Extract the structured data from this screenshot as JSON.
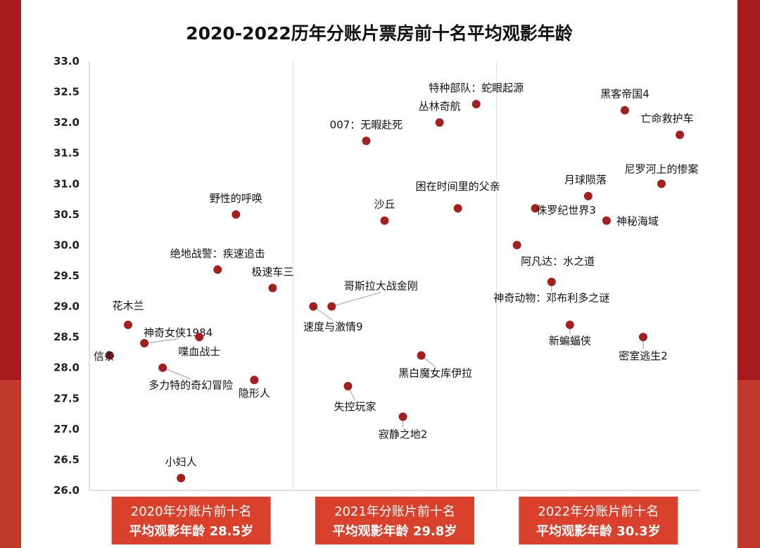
{
  "colors": {
    "point": "#a3201f",
    "footer": "#d9412c",
    "frame": "#b01f24"
  },
  "chart_data": {
    "type": "scatter",
    "title": "2020-2022历年分账片票房前十名平均观影年龄",
    "ylabel": "",
    "xlabel": "",
    "ylim": [
      26.0,
      33.0
    ],
    "yticks": [
      "26.0",
      "26.5",
      "27.0",
      "27.5",
      "28.0",
      "28.5",
      "29.0",
      "29.5",
      "30.0",
      "30.5",
      "31.0",
      "31.5",
      "32.0",
      "32.5",
      "33.0"
    ],
    "grid": false,
    "groups": [
      {
        "label_line1": "2020年分账片前十名",
        "label_line2": "平均观影年龄 28.5岁"
      },
      {
        "label_line1": "2021年分账片前十名",
        "label_line2": "平均观影年龄 29.8岁"
      },
      {
        "label_line1": "2022年分账片前十名",
        "label_line2": "平均观影年龄 30.3岁"
      }
    ],
    "points": [
      {
        "name": "信条",
        "group": 0,
        "x": 0.1,
        "y": 28.2
      },
      {
        "name": "花木兰",
        "group": 0,
        "x": 0.19,
        "y": 28.7
      },
      {
        "name": "神奇女侠1984",
        "group": 0,
        "x": 0.27,
        "y": 28.4
      },
      {
        "name": "多力特的奇幻冒险",
        "group": 0,
        "x": 0.36,
        "y": 28.0
      },
      {
        "name": "喋血战士",
        "group": 0,
        "x": 0.54,
        "y": 28.5
      },
      {
        "name": "小妇人",
        "group": 0,
        "x": 0.45,
        "y": 26.2
      },
      {
        "name": "绝地战警：疾速追击",
        "group": 0,
        "x": 0.63,
        "y": 29.6
      },
      {
        "name": "野性的呼唤",
        "group": 0,
        "x": 0.72,
        "y": 30.5
      },
      {
        "name": "隐形人",
        "group": 0,
        "x": 0.81,
        "y": 27.8
      },
      {
        "name": "极速车三",
        "group": 0,
        "x": 0.9,
        "y": 29.3
      },
      {
        "name": "速度与激情9",
        "group": 1,
        "x": 0.1,
        "y": 29.0
      },
      {
        "name": "哥斯拉大战金刚",
        "group": 1,
        "x": 0.19,
        "y": 29.0
      },
      {
        "name": "失控玩家",
        "group": 1,
        "x": 0.27,
        "y": 27.7
      },
      {
        "name": "007：无暇赴死",
        "group": 1,
        "x": 0.36,
        "y": 31.7
      },
      {
        "name": "沙丘",
        "group": 1,
        "x": 0.45,
        "y": 30.4
      },
      {
        "name": "寂静之地2",
        "group": 1,
        "x": 0.54,
        "y": 27.2
      },
      {
        "name": "黑白魔女库伊拉",
        "group": 1,
        "x": 0.63,
        "y": 28.2
      },
      {
        "name": "丛林奇航",
        "group": 1,
        "x": 0.72,
        "y": 32.0
      },
      {
        "name": "困在时间里的父亲",
        "group": 1,
        "x": 0.81,
        "y": 30.6
      },
      {
        "name": "特种部队：蛇眼起源",
        "group": 1,
        "x": 0.9,
        "y": 32.3
      },
      {
        "name": "阿凡达：水之道",
        "group": 2,
        "x": 0.1,
        "y": 30.0
      },
      {
        "name": "侏罗纪世界3",
        "group": 2,
        "x": 0.19,
        "y": 30.6
      },
      {
        "name": "神奇动物：邓布利多之谜",
        "group": 2,
        "x": 0.27,
        "y": 29.4
      },
      {
        "name": "新蝙蝠侠",
        "group": 2,
        "x": 0.36,
        "y": 28.7
      },
      {
        "name": "月球陨落",
        "group": 2,
        "x": 0.45,
        "y": 30.8
      },
      {
        "name": "神秘海域",
        "group": 2,
        "x": 0.54,
        "y": 30.4
      },
      {
        "name": "黑客帝国4",
        "group": 2,
        "x": 0.63,
        "y": 32.2
      },
      {
        "name": "密室逃生2",
        "group": 2,
        "x": 0.72,
        "y": 28.5
      },
      {
        "name": "尼罗河上的惨案",
        "group": 2,
        "x": 0.81,
        "y": 31.0
      },
      {
        "name": "亡命救护车",
        "group": 2,
        "x": 0.9,
        "y": 31.8
      }
    ]
  }
}
